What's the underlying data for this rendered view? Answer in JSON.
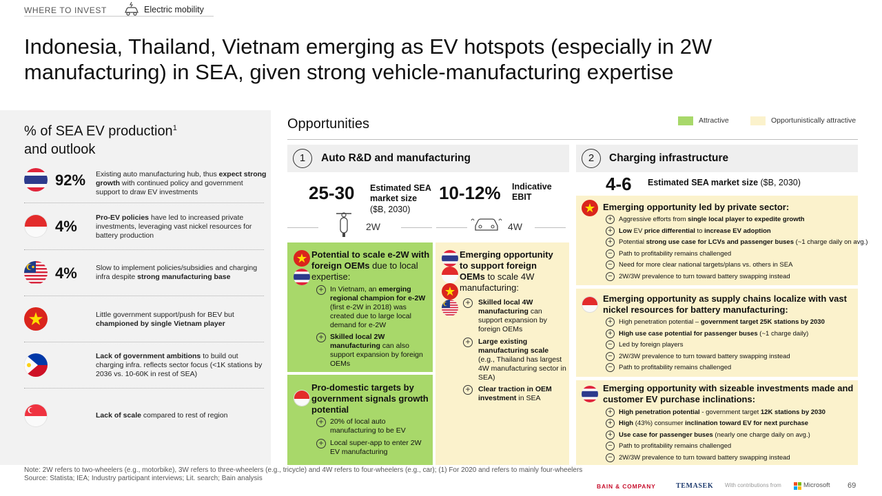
{
  "header": {
    "section": "WHERE TO INVEST",
    "topic": "Electric mobility",
    "title": "Indonesia, Thailand, Vietnam emerging as EV hotspots (especially in 2W manufacturing) in SEA, given strong vehicle-manufacturing expertise"
  },
  "left": {
    "heading": "% of SEA EV production",
    "heading_sup": "1",
    "heading_line2": "and outlook",
    "rows": [
      {
        "country": "Thailand",
        "pct": "92%",
        "text": "Existing auto manufacturing hub, thus expect strong growth with continued policy and government support to draw EV investments"
      },
      {
        "country": "Indonesia",
        "pct": "4%",
        "text": "Pro-EV policies have led to increased private investments, leveraging vast nickel resources for battery production"
      },
      {
        "country": "Malaysia",
        "pct": "4%",
        "text": "Slow to implement policies/subsidies and charging infra despite strong manufacturing base"
      },
      {
        "country": "Vietnam",
        "pct": "",
        "text": "Little government support/push for BEV but championed by single Vietnam player"
      },
      {
        "country": "Philippines",
        "pct": "",
        "text": "Lack of government ambitions to build out charging infra. reflects sector focus (<1K stations by 2036 vs. 10-60K in rest of SEA)"
      },
      {
        "country": "Singapore",
        "pct": "",
        "text": "Lack of scale compared to rest of region"
      }
    ]
  },
  "legend": {
    "attractive": "Attractive",
    "opportunistic": "Opportunistically attractive",
    "attractive_color": "#a8d86a",
    "opportunistic_color": "#fbf2cc"
  },
  "opportunities": {
    "heading": "Opportunities",
    "s1": {
      "num": "1",
      "title": "Auto R&D and manufacturing",
      "m1_value": "25-30",
      "m1_label": "Estimated SEA market size",
      "m1_unit": "($B, 2030)",
      "m2_value": "10-12%",
      "m2_label": "Indicative EBIT",
      "veh1": "2W",
      "veh2": "4W",
      "b1_title": "Potential to scale e-2W with foreign OEMs",
      "b1_title_rest": "due to local expertise:",
      "b1_items": [
        "In Vietnam, an emerging regional champion for e-2W (first e-2W in 2018) was created due to large local demand for e-2W",
        "Skilled local 2W manufacturing can also support expansion by foreign OEMs"
      ],
      "b2_title": "Pro-domestic targets by government signals growth potential",
      "b2_items": [
        "20% of local auto manufacturing to be EV",
        "Local super-app to enter 2W EV manufacturing"
      ],
      "b3_title": "Emerging opportunity to support foreign OEMs",
      "b3_title_rest": "to scale 4W manufacturing:",
      "b3_items": [
        "Skilled local 4W manufacturing can support expansion by foreign OEMs",
        "Large existing manufacturing scale (e.g., Thailand has largest 4W manufacturing sector in SEA)",
        "Clear traction in OEM investment in SEA"
      ]
    },
    "s2": {
      "num": "2",
      "title": "Charging infrastructure",
      "m_value": "4-6",
      "m_label": "Estimated SEA market size",
      "m_unit": "($B, 2030)",
      "vn_title": "Emerging opportunity led by private sector:",
      "vn_items": [
        {
          "sym": "+",
          "text": "Aggressive efforts from single local player to expedite growth"
        },
        {
          "sym": "+",
          "text": "Low EV price differential to increase EV adoption"
        },
        {
          "sym": "+",
          "text": "Potential strong use case for LCVs and passenger buses (~1 charge daily on avg.)"
        },
        {
          "sym": "−",
          "text": "Path to profitability remains challenged"
        },
        {
          "sym": "−",
          "text": "Need for more clear national targets/plans vs. others in SEA"
        },
        {
          "sym": "−",
          "text": "2W/3W prevalence to turn toward battery swapping instead"
        }
      ],
      "id_title": "Emerging opportunity as supply chains localize with vast nickel resources for battery manufacturing:",
      "id_items": [
        {
          "sym": "+",
          "text": "High penetration potential – government target 25K stations by 2030"
        },
        {
          "sym": "+",
          "text": "High use case potential for passenger buses (~1 charge daily)"
        },
        {
          "sym": "−",
          "text": "Led by foreign players"
        },
        {
          "sym": "−",
          "text": "2W/3W prevalence to turn toward battery swapping instead"
        },
        {
          "sym": "−",
          "text": "Path to profitability remains challenged"
        }
      ],
      "th_title": "Emerging opportunity with sizeable investments made and customer EV purchase inclinations:",
      "th_items": [
        {
          "sym": "+",
          "text": "High penetration potential - government target 12K stations by 2030"
        },
        {
          "sym": "+",
          "text": "High (43%) consumer inclination toward EV for next purchase"
        },
        {
          "sym": "+",
          "text": "Use case for passenger buses (nearly one charge daily on avg.)"
        },
        {
          "sym": "−",
          "text": "Path to profitability remains challenged"
        },
        {
          "sym": "−",
          "text": "2W/3W prevalence to turn toward battery swapping instead"
        }
      ]
    }
  },
  "footer": {
    "note": "Note: 2W refers to two-wheelers (e.g., motorbike), 3W refers to three-wheelers (e.g., tricycle) and 4W refers to four-wheelers (e.g., car); (1) For 2020 and refers to mainly four-wheelers",
    "source": "Source: Statista; IEA; Industry participant interviews; Lit. search; Bain analysis",
    "bain": "BAIN & COMPANY",
    "temasek": "TEMASEK",
    "with": "With contributions from",
    "microsoft": "Microsoft",
    "page": "69"
  }
}
